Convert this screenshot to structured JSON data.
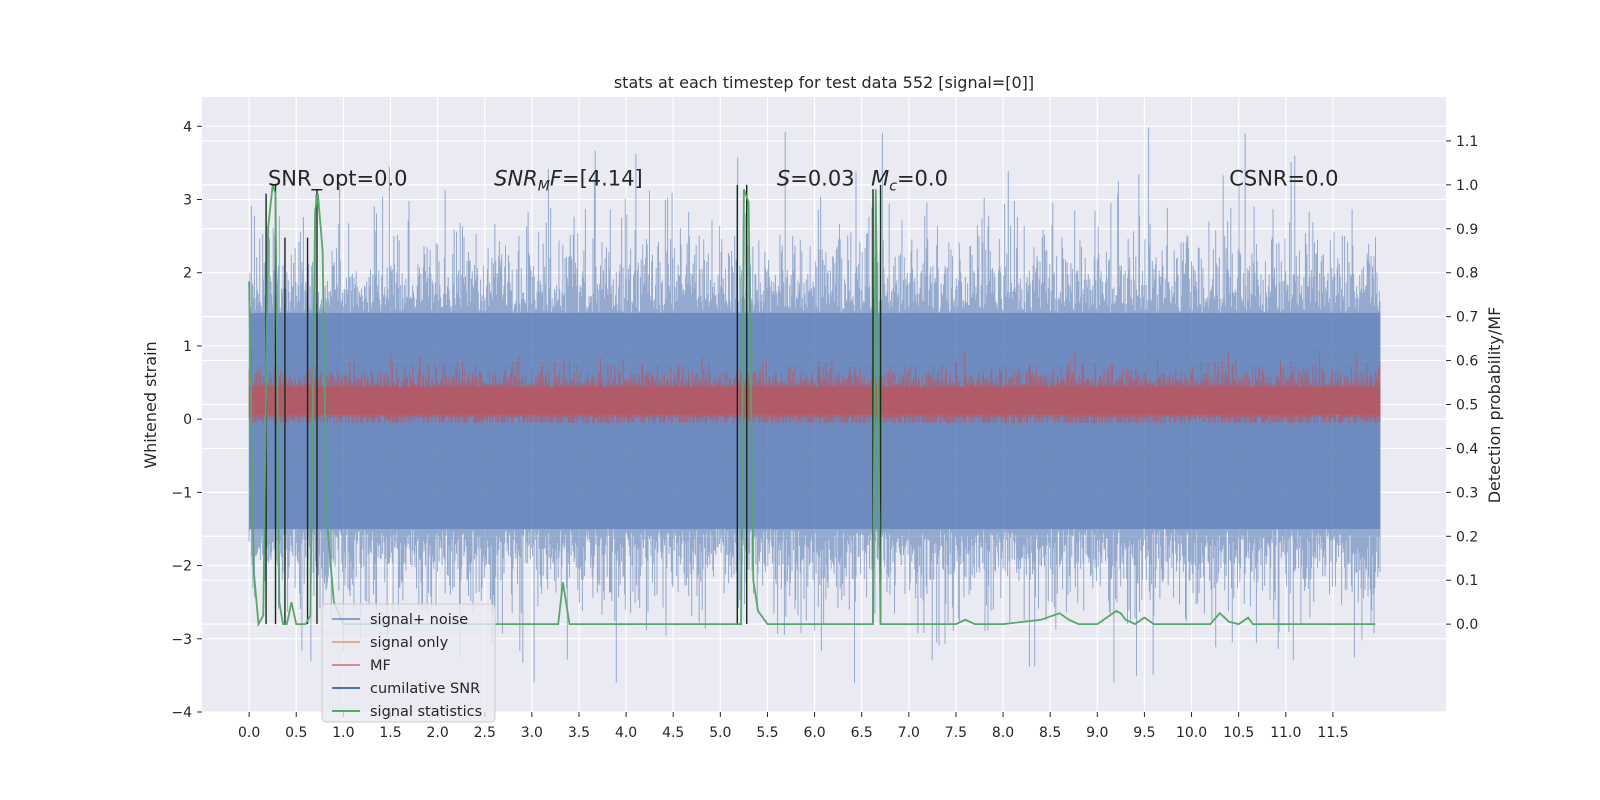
{
  "chart_data": {
    "type": "line",
    "title": "stats at each timestep for test data 552 [signal=[0]]",
    "ylabel": "Whitened strain",
    "ylabel_right": "Detection probability/MF",
    "xlim": [
      -0.5,
      12.7
    ],
    "ylim": [
      -4,
      4.4
    ],
    "ylim_right": [
      -0.2,
      1.2
    ],
    "x_ticks": [
      "0.0",
      "0.5",
      "1.0",
      "1.5",
      "2.0",
      "2.5",
      "3.0",
      "3.5",
      "4.0",
      "4.5",
      "5.0",
      "5.5",
      "6.0",
      "6.5",
      "7.0",
      "7.5",
      "8.0",
      "8.5",
      "9.0",
      "9.5",
      "10.0",
      "10.5",
      "11.0",
      "11.5"
    ],
    "y_ticks": [
      "4",
      "3",
      "2",
      "1",
      "0",
      "−1",
      "−2",
      "−3",
      "−4"
    ],
    "y_ticks_right": [
      "1.1",
      "1.0",
      "0.9",
      "0.8",
      "0.7",
      "0.6",
      "0.5",
      "0.4",
      "0.3",
      "0.2",
      "0.1",
      "0.0"
    ],
    "grid": true,
    "legend_placement": "lower-left",
    "noise": {
      "x_start": 0.0,
      "x_end": 12.0,
      "envelope_hi": 1.45,
      "envelope_lo": -1.5,
      "peak_max": 4.1,
      "trough_min": -3.6,
      "color": "#4c72b0"
    },
    "signal_only": {
      "x_start": 0.0,
      "x_end": 12.0,
      "center": 0.25,
      "spread": 0.35,
      "color": "#c44e52"
    },
    "series": [
      {
        "name": "signal+ noise",
        "color": "#4c72b0"
      },
      {
        "name": "signal only",
        "color": "#dd8452"
      },
      {
        "name": "MF",
        "color": "#c44e52"
      },
      {
        "name": "cumilative SNR",
        "color": "#4c72b0"
      },
      {
        "name": "signal statistics",
        "color": "#55a868"
      }
    ],
    "signal_statistics": {
      "x": [
        0.0,
        0.05,
        0.1,
        0.15,
        0.2,
        0.25,
        0.28,
        0.32,
        0.36,
        0.4,
        0.42,
        0.45,
        0.5,
        0.55,
        0.6,
        0.65,
        0.7,
        0.73,
        0.78,
        0.82,
        0.9,
        1.0,
        1.5,
        2.0,
        2.5,
        3.0,
        3.2,
        3.28,
        3.33,
        3.4,
        3.5,
        4.0,
        4.5,
        5.0,
        5.15,
        5.2,
        5.22,
        5.25,
        5.3,
        5.35,
        5.4,
        5.5,
        5.55,
        6.0,
        6.5,
        6.6,
        6.62,
        6.65,
        6.7,
        6.75,
        7.0,
        7.5,
        7.6,
        7.7,
        7.8,
        8.0,
        8.4,
        8.6,
        8.7,
        8.8,
        9.0,
        9.2,
        9.25,
        9.3,
        9.35,
        9.4,
        9.5,
        9.6,
        10.0,
        10.2,
        10.3,
        10.4,
        10.5,
        10.6,
        10.65,
        10.7,
        11.0,
        11.5,
        11.9,
        11.95
      ],
      "y": [
        0.78,
        0.12,
        0.0,
        0.02,
        0.9,
        1.0,
        0.98,
        0.05,
        0.0,
        0.0,
        0.02,
        0.05,
        0.0,
        0.0,
        0.0,
        0.02,
        0.94,
        0.98,
        0.85,
        0.25,
        0.05,
        0.0,
        0.0,
        0.0,
        0.0,
        0.0,
        0.0,
        0.0,
        0.095,
        0.0,
        0.0,
        0.0,
        0.0,
        0.0,
        0.0,
        0.0,
        0.0,
        0.99,
        0.96,
        0.1,
        0.03,
        0.0,
        0.0,
        0.0,
        0.0,
        0.0,
        0.0,
        0.99,
        0.0,
        0.0,
        0.0,
        0.0,
        0.01,
        0.0,
        0.0,
        0.0,
        0.01,
        0.025,
        0.01,
        0.0,
        0.0,
        0.03,
        0.025,
        0.01,
        0.005,
        0.0,
        0.015,
        0.0,
        0.0,
        0.0,
        0.025,
        0.005,
        0.0,
        0.015,
        0.0,
        0.0,
        0.0,
        0.0,
        0.0,
        0.0
      ]
    },
    "vertical_markers": {
      "x": [
        0.18,
        0.28,
        0.38,
        0.62,
        0.72,
        5.18,
        5.28,
        6.62,
        6.7
      ],
      "y_top": [
        0.98,
        1.0,
        0.88,
        0.88,
        0.99,
        1.0,
        1.0,
        0.99,
        1.0
      ],
      "color": "#1a2a1a"
    },
    "annotations": [
      {
        "parts": [
          {
            "t": "SNR_opt=0.0"
          }
        ],
        "x": 0.2
      },
      {
        "parts": [
          {
            "t": "SNR",
            "it": true
          },
          {
            "t": "M",
            "it": true,
            "sub": true
          },
          {
            "t": "F",
            "it": true
          },
          {
            "t": "=[4.14]"
          }
        ],
        "x": 2.6
      },
      {
        "parts": [
          {
            "t": "S",
            "it": true
          },
          {
            "t": "=0.03"
          }
        ],
        "x": 5.6
      },
      {
        "parts": [
          {
            "t": "M",
            "it": true
          },
          {
            "t": "c",
            "it": true,
            "sub": true
          },
          {
            "t": "=0.0"
          }
        ],
        "x": 6.6
      },
      {
        "parts": [
          {
            "t": "CSNR=0.0"
          }
        ],
        "x": 10.4
      }
    ],
    "annotation_y": 3.3
  }
}
